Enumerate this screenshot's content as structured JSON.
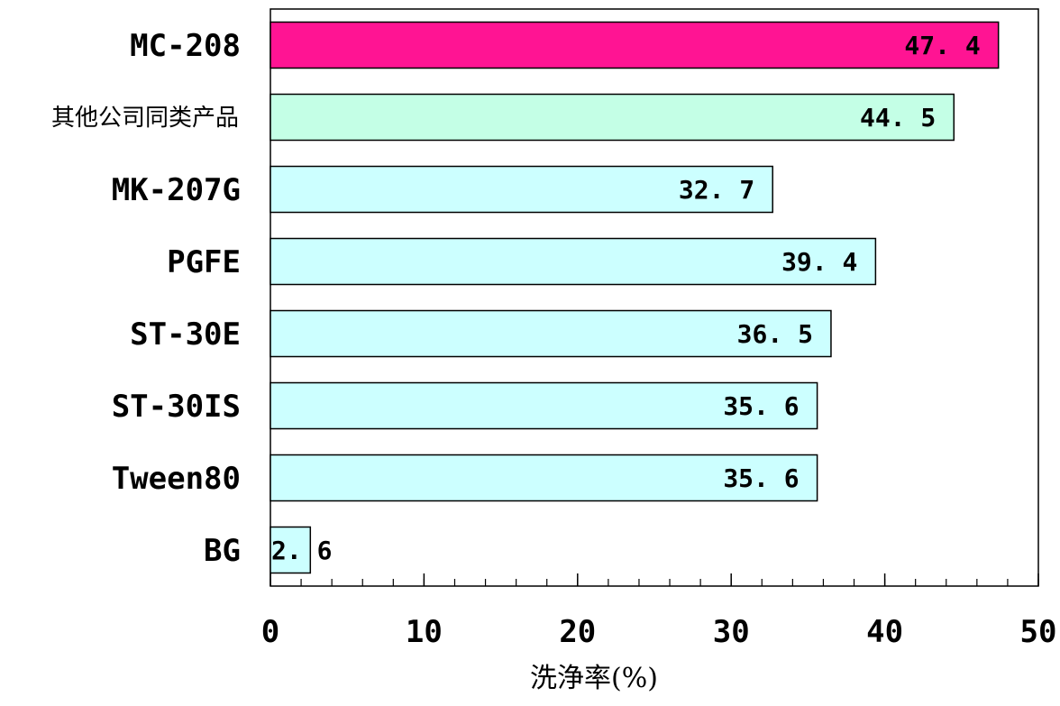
{
  "chart_data": {
    "type": "bar",
    "orientation": "horizontal",
    "categories": [
      "MC-208",
      "其他公司同类产品",
      "MK-207G",
      "PGFE",
      "ST-30E",
      "ST-30IS",
      "Tween80",
      "BG"
    ],
    "values": [
      47.4,
      44.5,
      32.7,
      39.4,
      36.5,
      35.6,
      35.6,
      2.6
    ],
    "value_labels": [
      "47. 4",
      "44. 5",
      "32. 7",
      "39. 4",
      "36. 5",
      "35. 6",
      "35. 6",
      "2. 6"
    ],
    "bar_colors": [
      "#ff1493",
      "#c4ffe6",
      "#ccffff",
      "#ccffff",
      "#ccffff",
      "#ccffff",
      "#ccffff",
      "#ccffff"
    ],
    "xlabel": "洗浄率(%)",
    "ylabel": "",
    "title": "",
    "xlim": [
      0,
      50
    ],
    "xticks": [
      0,
      10,
      20,
      30,
      40,
      50
    ],
    "minor_tick_step": 2,
    "grid": false,
    "legend": "none"
  }
}
